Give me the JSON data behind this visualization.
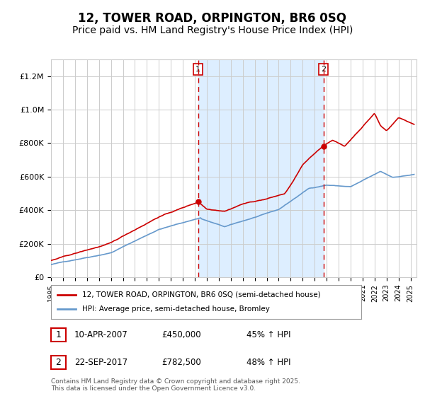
{
  "title": "12, TOWER ROAD, ORPINGTON, BR6 0SQ",
  "subtitle": "Price paid vs. HM Land Registry's House Price Index (HPI)",
  "legend_line1": "12, TOWER ROAD, ORPINGTON, BR6 0SQ (semi-detached house)",
  "legend_line2": "HPI: Average price, semi-detached house, Bromley",
  "footer": "Contains HM Land Registry data © Crown copyright and database right 2025.\nThis data is licensed under the Open Government Licence v3.0.",
  "annotation1_date": "10-APR-2007",
  "annotation1_price": "£450,000",
  "annotation1_hpi": "45% ↑ HPI",
  "annotation2_date": "22-SEP-2017",
  "annotation2_price": "£782,500",
  "annotation2_hpi": "48% ↑ HPI",
  "sale1_year": 2007.27,
  "sale1_value": 450000,
  "sale2_year": 2017.73,
  "sale2_value": 782500,
  "ylim": [
    0,
    1300000
  ],
  "xlim_start": 1995,
  "xlim_end": 2025.5,
  "red_color": "#cc0000",
  "blue_color": "#6699cc",
  "shade_color": "#ddeeff",
  "grid_color": "#cccccc",
  "background_color": "#ffffff",
  "title_fontsize": 12,
  "subtitle_fontsize": 10
}
